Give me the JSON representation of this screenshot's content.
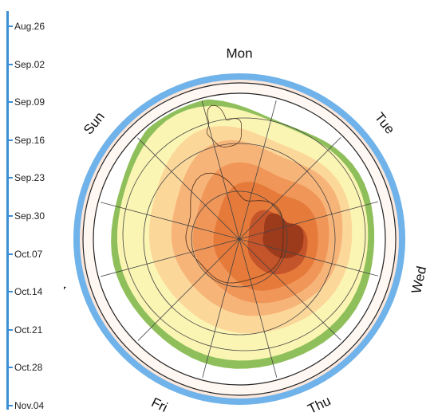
{
  "timeline": {
    "dates": [
      "Aug.26",
      "Sep.02",
      "Sep.09",
      "Sep.16",
      "Sep.23",
      "Sep.30",
      "Oct.07",
      "Oct.14",
      "Oct.21",
      "Oct.28",
      "Nov.04"
    ],
    "axis_color": "#3d8fd6"
  },
  "dial": {
    "days": [
      "Mon",
      "Tue",
      "Wed",
      "Thu",
      "Fri",
      "Sat",
      "Sun"
    ],
    "ring_color": "#6fb3ea"
  },
  "map": {
    "colors": {
      "ocean": "#ffffff",
      "land_edge": "#8fbf5a",
      "band_1": "#fbf5b4",
      "band_2": "#fbd89a",
      "band_3": "#f7b478",
      "band_4": "#ef9658",
      "band_5": "#e57a3a",
      "hole_inner": "#c4542a",
      "hole_core": "#9c3a1c"
    }
  }
}
